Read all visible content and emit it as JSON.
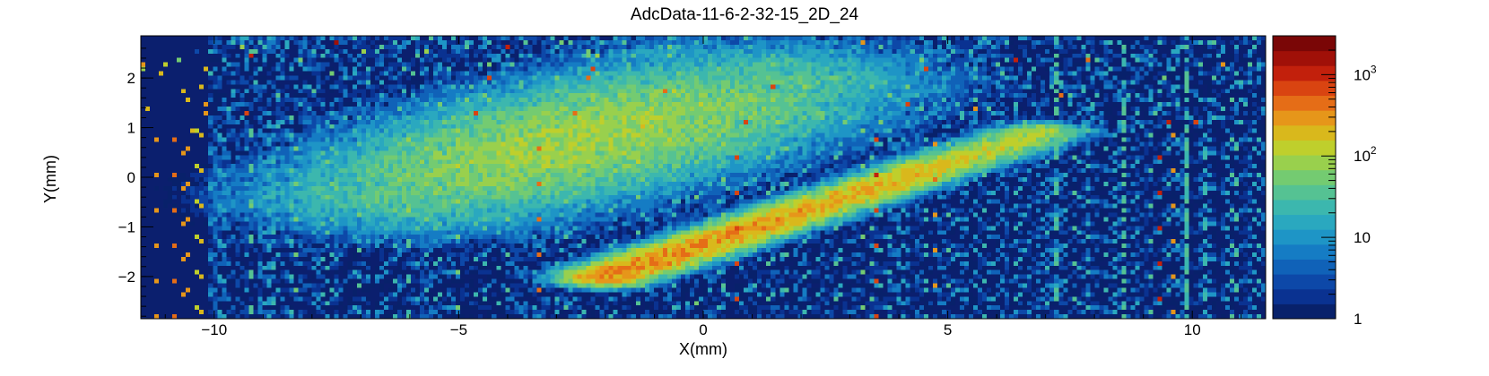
{
  "chart_data": {
    "type": "heatmap",
    "title": "AdcData-11-6-2-32-15_2D_24",
    "xlabel": "X(mm)",
    "ylabel": "Y(mm)",
    "xlim": [
      -11.5,
      11.5
    ],
    "ylim": [
      -2.85,
      2.85
    ],
    "x_ticks": [
      -10,
      -5,
      0,
      5,
      10
    ],
    "x_tick_labels": [
      "−10",
      "−5",
      "0",
      "5",
      "10"
    ],
    "y_ticks": [
      -2,
      -1,
      0,
      1,
      2
    ],
    "y_tick_labels": [
      "−2",
      "−1",
      "0",
      "1",
      "2"
    ],
    "z_scale": "log",
    "z_range": [
      1,
      3000
    ],
    "colorbar_ticks": [
      1,
      10,
      100,
      1000
    ],
    "colorbar_tick_labels": [
      {
        "base": "1",
        "exp": ""
      },
      {
        "base": "10",
        "exp": ""
      },
      {
        "base": "10",
        "exp": "2"
      },
      {
        "base": "10",
        "exp": "3"
      }
    ],
    "colormap": [
      "#08216b",
      "#0a3291",
      "#0d48a8",
      "#1062b8",
      "#157cc4",
      "#1e95c6",
      "#2aa8bf",
      "#3cb7ae",
      "#55c293",
      "#74cb71",
      "#99d04d",
      "#bfcf2c",
      "#d9b81c",
      "#e6961a",
      "#e56d17",
      "#d94411",
      "#c2200c",
      "#a01008",
      "#7a0606"
    ],
    "background_color": "#0b1f6e",
    "features": [
      {
        "kind": "band",
        "x0": -5.8,
        "y0": -0.35,
        "x1": 1.0,
        "y1": 1.9,
        "peak": 90
      },
      {
        "kind": "track",
        "x0": -2.0,
        "y0": -2.0,
        "x1": 6.9,
        "y1": 0.9,
        "peak": 400
      }
    ]
  }
}
